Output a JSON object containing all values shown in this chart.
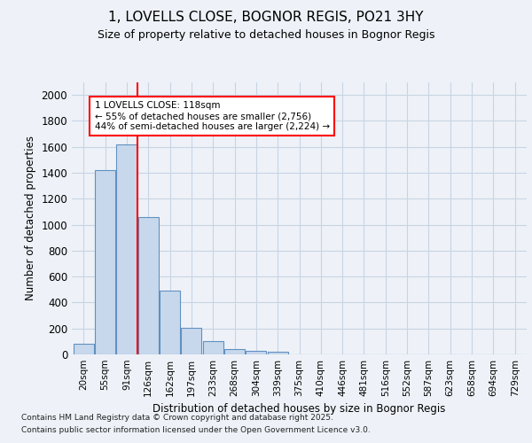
{
  "title1": "1, LOVELLS CLOSE, BOGNOR REGIS, PO21 3HY",
  "title2": "Size of property relative to detached houses in Bognor Regis",
  "xlabel": "Distribution of detached houses by size in Bognor Regis",
  "ylabel": "Number of detached properties",
  "categories": [
    "20sqm",
    "55sqm",
    "91sqm",
    "126sqm",
    "162sqm",
    "197sqm",
    "233sqm",
    "268sqm",
    "304sqm",
    "339sqm",
    "375sqm",
    "410sqm",
    "446sqm",
    "481sqm",
    "516sqm",
    "552sqm",
    "587sqm",
    "623sqm",
    "658sqm",
    "694sqm",
    "729sqm"
  ],
  "values": [
    80,
    1420,
    1620,
    1060,
    490,
    205,
    105,
    40,
    30,
    20,
    0,
    0,
    0,
    0,
    0,
    0,
    0,
    0,
    0,
    0,
    0
  ],
  "bar_color": "#c8d8ec",
  "bar_edge_color": "#6090c0",
  "grid_color": "#c8d4e4",
  "vline_color": "red",
  "vline_x": 2.5,
  "annotation_text": "1 LOVELLS CLOSE: 118sqm\n← 55% of detached houses are smaller (2,756)\n44% of semi-detached houses are larger (2,224) →",
  "annotation_box_color": "white",
  "annotation_box_edge": "red",
  "ylim": [
    0,
    2100
  ],
  "yticks": [
    0,
    200,
    400,
    600,
    800,
    1000,
    1200,
    1400,
    1600,
    1800,
    2000
  ],
  "footer1": "Contains HM Land Registry data © Crown copyright and database right 2025.",
  "footer2": "Contains public sector information licensed under the Open Government Licence v3.0.",
  "bg_color": "#eef2f8"
}
